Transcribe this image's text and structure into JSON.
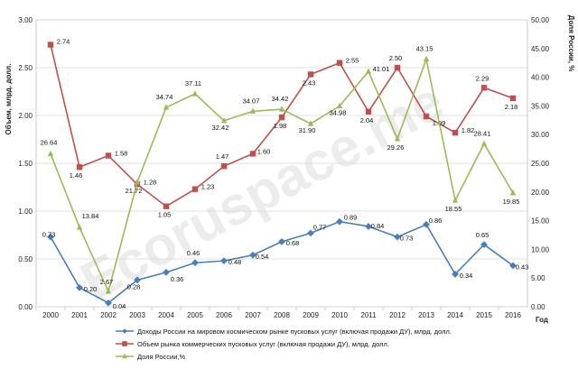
{
  "chart_data": {
    "type": "line",
    "categories": [
      "2000",
      "2001",
      "2002",
      "2003",
      "2004",
      "2005",
      "2006",
      "2007",
      "2008",
      "2009",
      "2010",
      "2011",
      "2012",
      "2013",
      "2014",
      "2015",
      "2016"
    ],
    "x_unit_label": "Год",
    "ylabel_left": "Объем, млрд. долл.",
    "ylabel_right": "Доля России, %",
    "ylim_left": [
      0,
      3
    ],
    "yticks_left": [
      "0.00",
      "0.50",
      "1.00",
      "1.50",
      "2.00",
      "2.50",
      "3.00"
    ],
    "ylim_right": [
      0,
      50
    ],
    "yticks_right": [
      "0.00",
      "5.00",
      "10.00",
      "15.00",
      "20.00",
      "25.00",
      "30.00",
      "35.00",
      "40.00",
      "45.00",
      "50.00"
    ],
    "grid": true,
    "legend_position": "bottom",
    "watermark": "Ecoruspace.me",
    "series": [
      {
        "name": "Доходы России на мировом космическом рынке пусковых услуг (включая продажи ДУ), млрд. долл.",
        "axis": "left",
        "color": "#4a7ebb",
        "marker": "diamond",
        "values": [
          0.73,
          0.2,
          0.04,
          0.28,
          0.36,
          0.46,
          0.48,
          0.54,
          0.68,
          0.77,
          0.89,
          0.84,
          0.73,
          0.86,
          0.34,
          0.65,
          0.43
        ],
        "labels": [
          "0.73",
          "0.20",
          "0.04",
          "0.28",
          "0.36",
          "0.46",
          "0.48",
          "0.54",
          "0.68",
          "0.77",
          "0.89",
          "0.84",
          "0.73",
          "0.86",
          "0.34",
          "0.65",
          "0.43"
        ]
      },
      {
        "name": "Объем рынка коммерческих пусковых услуг (включая продажи ДУ), млрд. долл.",
        "axis": "left",
        "color": "#c0504d",
        "marker": "square",
        "values": [
          2.74,
          1.46,
          1.58,
          1.28,
          1.05,
          1.23,
          1.47,
          1.6,
          1.98,
          2.43,
          2.55,
          2.04,
          2.5,
          1.99,
          1.82,
          2.29,
          2.18
        ],
        "labels": [
          "2.74",
          "1.46",
          "1.58",
          "1.28",
          "1.05",
          "1.23",
          "1.47",
          "1.60",
          "1.98",
          "2.43",
          "2.55",
          "2.04",
          "2.50",
          "1.99",
          "1.82",
          "2.29",
          "2.18"
        ]
      },
      {
        "name": "Доля России,%",
        "axis": "right",
        "color": "#9bbb59",
        "marker": "triangle",
        "values": [
          26.64,
          13.84,
          2.67,
          21.72,
          34.74,
          37.11,
          32.42,
          34.07,
          34.42,
          31.9,
          34.98,
          41.01,
          29.26,
          43.15,
          18.55,
          28.41,
          19.85
        ],
        "labels": [
          "26.64",
          "13.84",
          "2.67",
          "21.72",
          "34.74",
          "37.11",
          "32.42",
          "34.07",
          "34.42",
          "31.90",
          "34.98",
          "41.01",
          "29.26",
          "43.15",
          "18.55",
          "28.41",
          "19.85"
        ]
      }
    ]
  }
}
